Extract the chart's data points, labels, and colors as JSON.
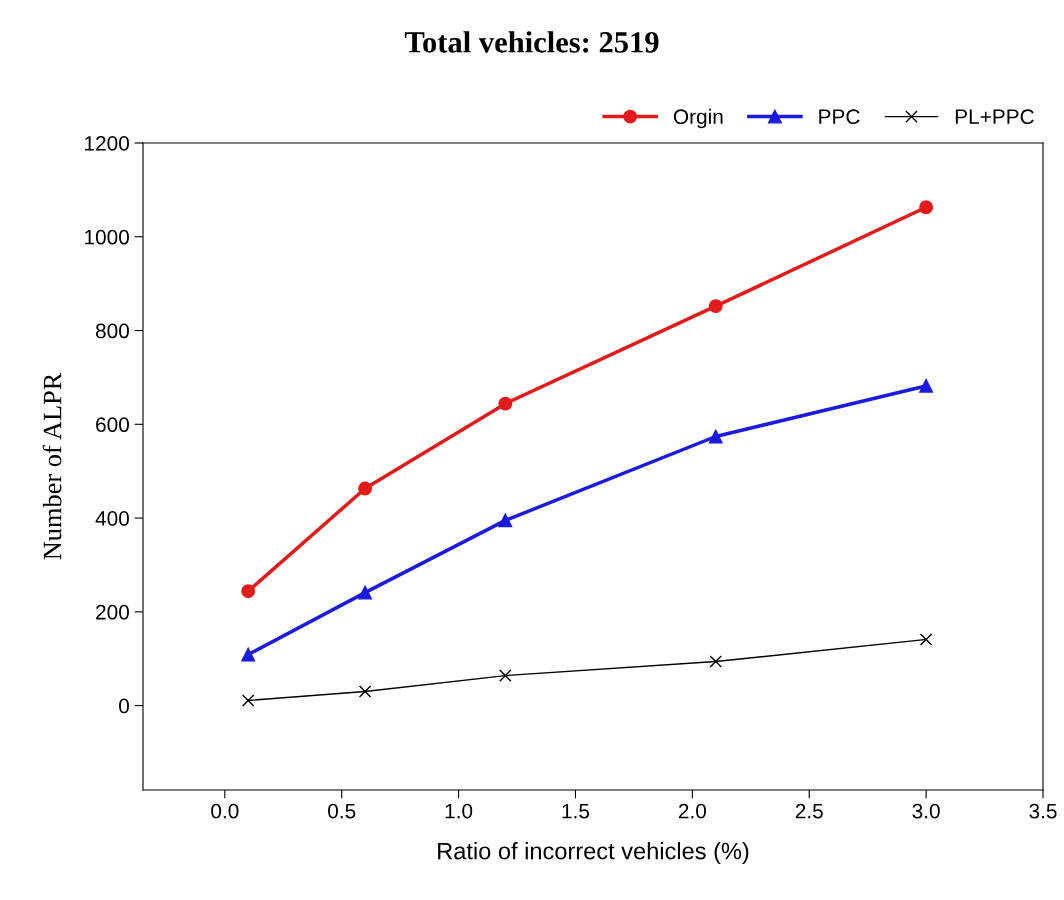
{
  "chart_data": {
    "type": "line",
    "title": "Total vehicles: 2519",
    "xlabel": "Ratio of incorrect vehicles (%)",
    "ylabel": "Number of ALPR",
    "x": [
      0.1,
      0.6,
      1.2,
      2.1,
      3.0
    ],
    "series": [
      {
        "name": "Orgin",
        "color": "#e41a1a",
        "marker": "circle",
        "values": [
          244,
          463,
          644,
          852,
          1063
        ]
      },
      {
        "name": "PPC",
        "color": "#1a1ae0",
        "marker": "triangle",
        "values": [
          109,
          241,
          395,
          574,
          682
        ]
      },
      {
        "name": "PL+PPC",
        "color": "#000000",
        "marker": "cross",
        "values": [
          11,
          30,
          64,
          94,
          141
        ]
      }
    ],
    "xlim": [
      -0.35,
      3.5
    ],
    "xticks": [
      {
        "value": 0,
        "label": "0.0"
      },
      0.5,
      {
        "value": 1,
        "label": "1.0"
      },
      1.5,
      {
        "value": 2,
        "label": "2.0"
      },
      2.5,
      {
        "value": 3,
        "label": "3.0"
      },
      3.5
    ],
    "ylim": [
      -180,
      1200
    ],
    "yticks": [
      0,
      200,
      400,
      600,
      800,
      1000,
      1200
    ],
    "grid": false,
    "legend": "top right",
    "line_style": "solid"
  }
}
